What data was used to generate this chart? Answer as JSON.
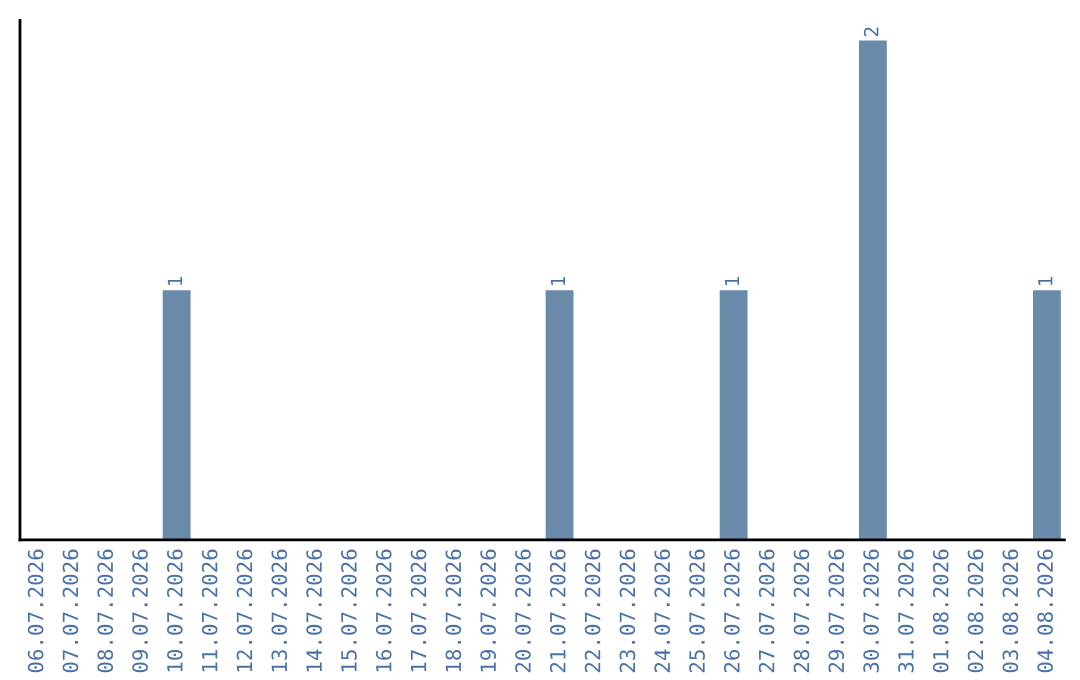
{
  "chart_data": {
    "type": "bar",
    "categories": [
      "06.07.2026",
      "07.07.2026",
      "08.07.2026",
      "09.07.2026",
      "10.07.2026",
      "11.07.2026",
      "12.07.2026",
      "13.07.2026",
      "14.07.2026",
      "15.07.2026",
      "16.07.2026",
      "17.07.2026",
      "18.07.2026",
      "19.07.2026",
      "20.07.2026",
      "21.07.2026",
      "22.07.2026",
      "23.07.2026",
      "24.07.2026",
      "25.07.2026",
      "26.07.2026",
      "27.07.2026",
      "28.07.2026",
      "29.07.2026",
      "30.07.2026",
      "31.07.2026",
      "01.08.2026",
      "02.08.2026",
      "03.08.2026",
      "04.08.2026"
    ],
    "values": [
      0,
      0,
      0,
      0,
      1,
      0,
      0,
      0,
      0,
      0,
      0,
      0,
      0,
      0,
      0,
      1,
      0,
      0,
      0,
      0,
      1,
      0,
      0,
      0,
      2,
      0,
      0,
      0,
      0,
      1
    ],
    "value_labels": [
      null,
      null,
      null,
      null,
      "1",
      null,
      null,
      null,
      null,
      null,
      null,
      null,
      null,
      null,
      null,
      "1",
      null,
      null,
      null,
      null,
      "1",
      null,
      null,
      null,
      "2",
      null,
      null,
      null,
      null,
      "1"
    ],
    "color": "#6a8aaa",
    "tick_labels": "x",
    "grid": false,
    "legend": false
  }
}
